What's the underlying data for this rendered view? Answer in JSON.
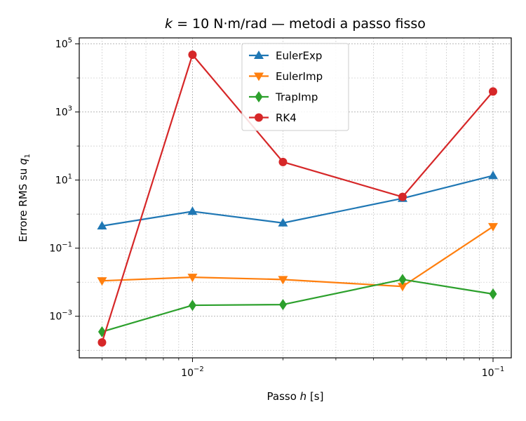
{
  "chart_data": {
    "type": "line",
    "title_prefix": "k",
    "title_rest": " = 10 N·m/rad — metodi a passo fisso",
    "xlabel_text": "Passo ",
    "xlabel_var": "h",
    "xlabel_unit": " [s]",
    "ylabel_text": "Errore RMS su ",
    "ylabel_var": "q",
    "ylabel_sub": "1",
    "xscale": "log",
    "yscale": "log",
    "xlim": [
      0.0042,
      0.115
    ],
    "ylim": [
      6e-05,
      150000
    ],
    "grid": true,
    "legend_position": "upper-center",
    "x": [
      0.005,
      0.01,
      0.02,
      0.05,
      0.1
    ],
    "x_ticks": [
      {
        "value": 0.01,
        "base": "10",
        "exp": "−2"
      },
      {
        "value": 0.1,
        "base": "10",
        "exp": "−1"
      }
    ],
    "y_ticks": [
      {
        "value": 0.001,
        "base": "10",
        "exp": "−3"
      },
      {
        "value": 0.1,
        "base": "10",
        "exp": "−1"
      },
      {
        "value": 10,
        "base": "10",
        "exp": "1"
      },
      {
        "value": 1000,
        "base": "10",
        "exp": "3"
      },
      {
        "value": 100000,
        "base": "10",
        "exp": "5"
      }
    ],
    "series": [
      {
        "name": "EulerExp",
        "color": "#1f77b4",
        "marker": "triangle-up",
        "values": [
          0.45,
          1.2,
          0.55,
          2.9,
          13.5
        ]
      },
      {
        "name": "EulerImp",
        "color": "#ff7f0e",
        "marker": "triangle-down",
        "values": [
          0.011,
          0.014,
          0.012,
          0.0075,
          0.43
        ]
      },
      {
        "name": "TrapImp",
        "color": "#2ca02c",
        "marker": "diamond",
        "values": [
          0.00035,
          0.0021,
          0.0022,
          0.012,
          0.0045
        ]
      },
      {
        "name": "RK4",
        "color": "#d62728",
        "marker": "circle",
        "values": [
          0.00017,
          48000,
          34,
          3.2,
          4000
        ]
      }
    ]
  }
}
